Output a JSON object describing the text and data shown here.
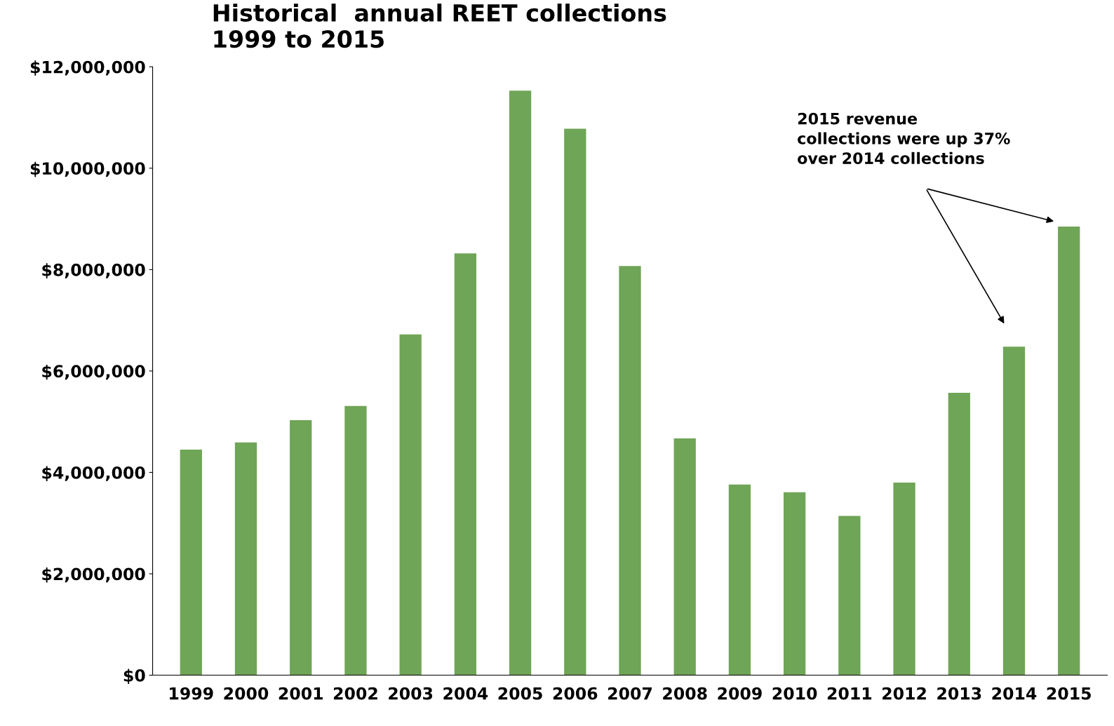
{
  "chart_data": {
    "type": "bar",
    "title": "Historical  annual REET collections\n1999 to 2015",
    "categories": [
      "1999",
      "2000",
      "2001",
      "2002",
      "2003",
      "2004",
      "2005",
      "2006",
      "2007",
      "2008",
      "2009",
      "2010",
      "2011",
      "2012",
      "2013",
      "2014",
      "2015"
    ],
    "values": [
      4450000,
      4590000,
      5030000,
      5310000,
      6720000,
      8320000,
      11530000,
      10780000,
      8070000,
      4670000,
      3760000,
      3610000,
      3140000,
      3800000,
      5570000,
      6480000,
      8850000
    ],
    "color": "#6fa556",
    "ylim": [
      0,
      12000000
    ],
    "yticks": [
      {
        "value": 0,
        "label": "$0"
      },
      {
        "value": 2000000,
        "label": "$2,000,000"
      },
      {
        "value": 4000000,
        "label": "$4,000,000"
      },
      {
        "value": 6000000,
        "label": "$6,000,000"
      },
      {
        "value": 8000000,
        "label": "$8,000,000"
      },
      {
        "value": 10000000,
        "label": "$10,000,000"
      },
      {
        "value": 12000000,
        "label": "$12,000,000"
      }
    ],
    "grid": false,
    "annotations": [
      "2015 revenue\ncollections were up 37%\nover 2014 collections"
    ]
  }
}
